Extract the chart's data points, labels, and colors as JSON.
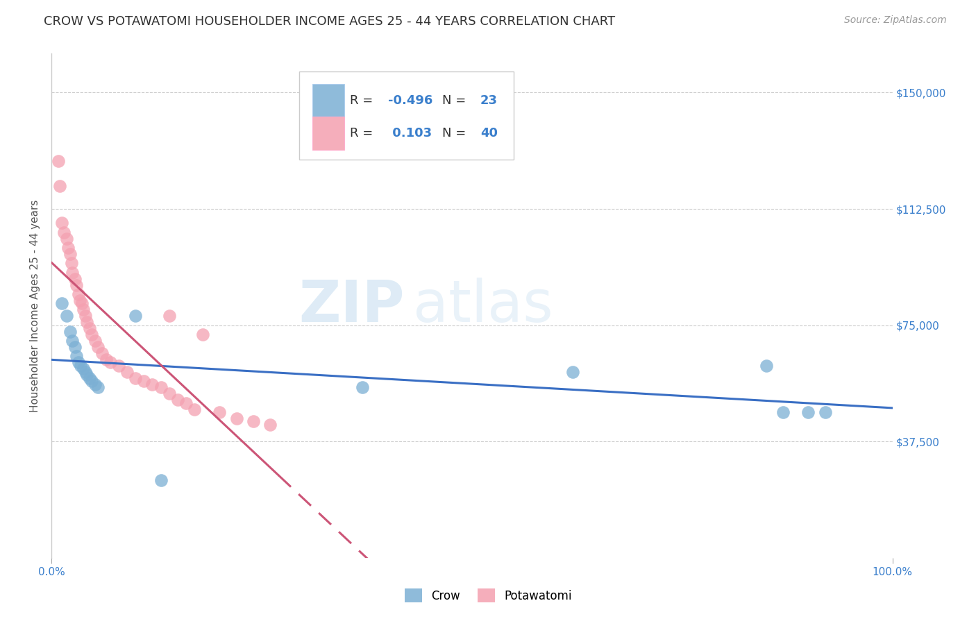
{
  "title": "CROW VS POTAWATOMI HOUSEHOLDER INCOME AGES 25 - 44 YEARS CORRELATION CHART",
  "source": "Source: ZipAtlas.com",
  "ylabel": "Householder Income Ages 25 - 44 years",
  "xlim": [
    0,
    1.0
  ],
  "ylim": [
    0,
    162500
  ],
  "xtick_labels": [
    "0.0%",
    "100.0%"
  ],
  "ytick_positions": [
    37500,
    75000,
    112500,
    150000
  ],
  "ytick_labels": [
    "$37,500",
    "$75,000",
    "$112,500",
    "$150,000"
  ],
  "watermark_zip": "ZIP",
  "watermark_atlas": "atlas",
  "crow_color": "#7BAFD4",
  "potawatomi_color": "#F4A0B0",
  "crow_R": -0.496,
  "crow_N": 23,
  "potawatomi_R": 0.103,
  "potawatomi_N": 40,
  "crow_x": [
    0.012,
    0.018,
    0.022,
    0.025,
    0.028,
    0.03,
    0.032,
    0.035,
    0.038,
    0.04,
    0.042,
    0.045,
    0.048,
    0.052,
    0.055,
    0.1,
    0.37,
    0.62,
    0.85,
    0.87,
    0.9,
    0.92,
    0.13
  ],
  "crow_y": [
    82000,
    78000,
    73000,
    70000,
    68000,
    65000,
    63000,
    62000,
    61000,
    60000,
    59000,
    58000,
    57000,
    56000,
    55000,
    78000,
    55000,
    60000,
    62000,
    47000,
    47000,
    47000,
    25000
  ],
  "potawatomi_x": [
    0.008,
    0.01,
    0.012,
    0.015,
    0.018,
    0.02,
    0.022,
    0.024,
    0.025,
    0.028,
    0.03,
    0.032,
    0.034,
    0.036,
    0.038,
    0.04,
    0.042,
    0.045,
    0.048,
    0.052,
    0.055,
    0.06,
    0.065,
    0.07,
    0.08,
    0.09,
    0.1,
    0.11,
    0.12,
    0.13,
    0.14,
    0.15,
    0.16,
    0.17,
    0.2,
    0.22,
    0.24,
    0.26,
    0.14,
    0.18
  ],
  "potawatomi_y": [
    128000,
    120000,
    108000,
    105000,
    103000,
    100000,
    98000,
    95000,
    92000,
    90000,
    88000,
    85000,
    83000,
    82000,
    80000,
    78000,
    76000,
    74000,
    72000,
    70000,
    68000,
    66000,
    64000,
    63000,
    62000,
    60000,
    58000,
    57000,
    56000,
    55000,
    53000,
    51000,
    50000,
    48000,
    47000,
    45000,
    44000,
    43000,
    78000,
    72000
  ],
  "background_color": "#FFFFFF",
  "grid_color": "#CCCCCC",
  "title_fontsize": 13,
  "label_fontsize": 11,
  "tick_fontsize": 11,
  "legend_text_color": "#3366BB",
  "legend_r_label_color": "#333333"
}
